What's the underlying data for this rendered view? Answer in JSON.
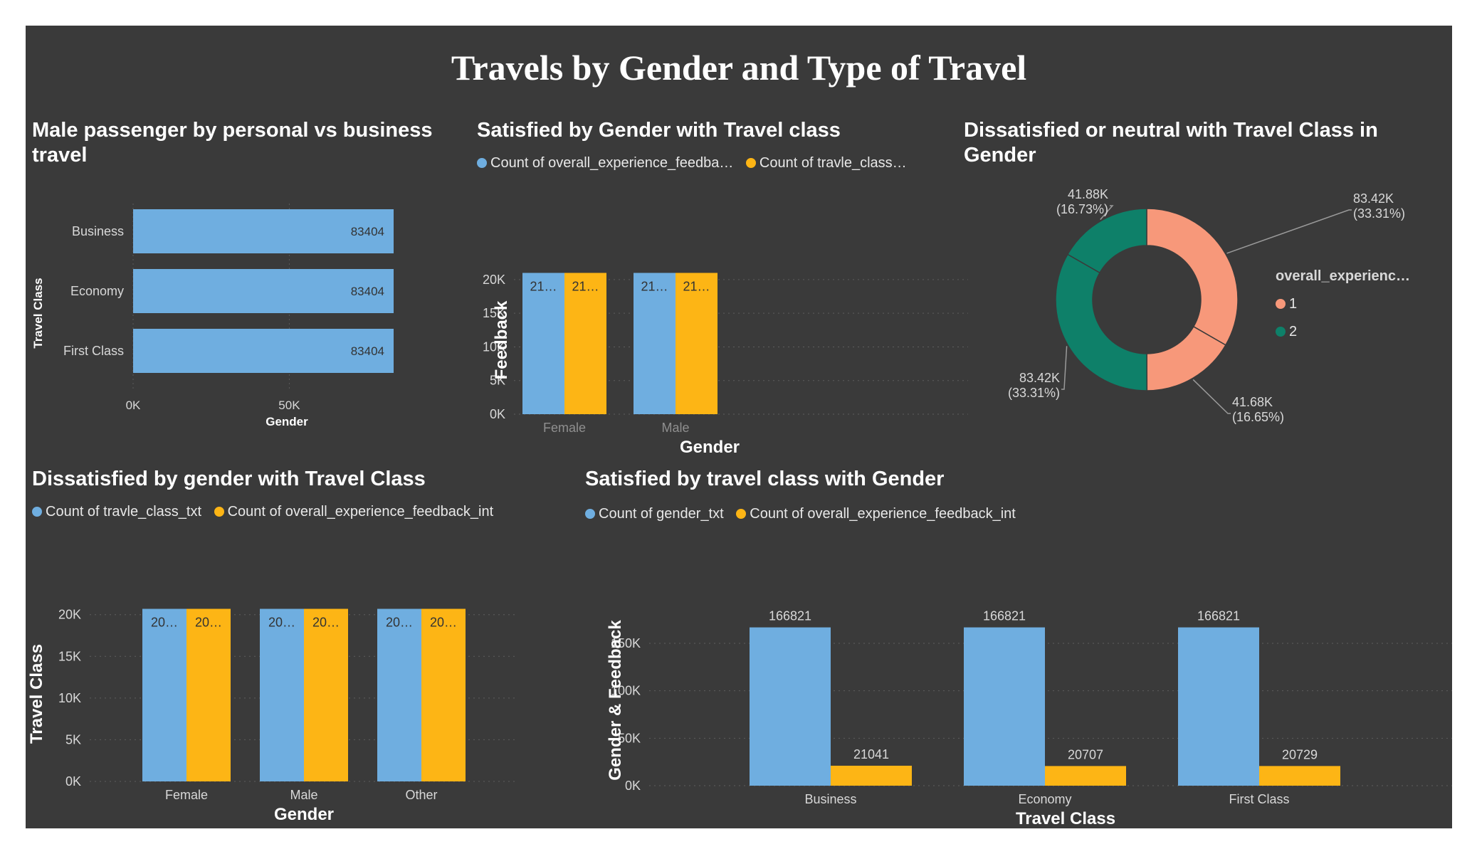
{
  "dashboard": {
    "title": "Travels by Gender and Type of Travel"
  },
  "colors": {
    "blue": "#6faee0",
    "yellow": "#fdb515",
    "salmon": "#f7987a",
    "teal": "#0e8069",
    "background": "#3a3a3a",
    "text": "#ffffff",
    "axis_text": "#d8d8d8"
  },
  "panels": {
    "p1": {
      "title": "Male passenger by personal vs business travel"
    },
    "p2": {
      "title": "Satisfied by Gender with Travel class",
      "legend": [
        "Count of overall_experience_feedba…",
        "Count of travle_class…"
      ]
    },
    "p3": {
      "title": "Dissatisfied or neutral with Travel Class in Gender",
      "legend_title": "overall_experienc…",
      "legend": [
        "1",
        "2"
      ]
    },
    "p4": {
      "title": "Dissatisfied by gender with Travel Class",
      "legend": [
        "Count of travle_class_txt",
        "Count of overall_experience_feedback_int"
      ]
    },
    "p5": {
      "title": "Satisfied by travel class with Gender",
      "legend": [
        "Count of gender_txt",
        "Count of overall_experience_feedback_int"
      ]
    }
  },
  "chart_data": [
    {
      "id": "p1",
      "type": "bar",
      "orientation": "horizontal",
      "categories": [
        "Business",
        "Economy",
        "First Class"
      ],
      "values": [
        83404,
        83404,
        83404
      ],
      "data_labels": [
        "83404",
        "83404",
        "83404"
      ],
      "xlabel": "Gender",
      "ylabel": "Travel Class",
      "xlim": [
        0,
        83404
      ],
      "xticks": [
        0,
        50000
      ],
      "xtick_labels": [
        "0K",
        "50K"
      ]
    },
    {
      "id": "p2",
      "type": "bar",
      "categories": [
        "Female",
        "Male"
      ],
      "series": [
        {
          "name": "Count of overall_experience_feedba…",
          "values": [
            21000,
            21000
          ],
          "data_labels": [
            "21…",
            "21…"
          ]
        },
        {
          "name": "Count of travle_class…",
          "values": [
            21000,
            21000
          ],
          "data_labels": [
            "21…",
            "21…"
          ]
        }
      ],
      "xlabel": "Gender",
      "ylabel": "Feedback",
      "ylim": [
        0,
        22000
      ],
      "yticks": [
        0,
        5000,
        10000,
        15000,
        20000
      ],
      "ytick_labels": [
        "0K",
        "5K",
        "10K",
        "15K",
        "20K"
      ]
    },
    {
      "id": "p3",
      "type": "pie",
      "donut": true,
      "slices": [
        {
          "label": "1",
          "value": 83420,
          "data_label": [
            "83.42K",
            "(33.31%)"
          ]
        },
        {
          "label": "1",
          "value": 41680,
          "data_label": [
            "41.68K",
            "(16.65%)"
          ]
        },
        {
          "label": "2",
          "value": 83420,
          "data_label": [
            "83.42K",
            "(33.31%)"
          ]
        },
        {
          "label": "2",
          "value": 41880,
          "data_label": [
            "41.88K",
            "(16.73%)"
          ]
        }
      ],
      "legend_placement": "right"
    },
    {
      "id": "p4",
      "type": "bar",
      "categories": [
        "Female",
        "Male",
        "Other"
      ],
      "series": [
        {
          "name": "Count of travle_class_txt",
          "values": [
            20700,
            20700,
            20700
          ],
          "data_labels": [
            "20…",
            "20…",
            "20…"
          ]
        },
        {
          "name": "Count of overall_experience_feedback_int",
          "values": [
            20700,
            20700,
            20700
          ],
          "data_labels": [
            "20…",
            "20…",
            "20…"
          ]
        }
      ],
      "xlabel": "Gender",
      "ylabel": "Travel Class",
      "ylim": [
        0,
        21000
      ],
      "yticks": [
        0,
        5000,
        10000,
        15000,
        20000
      ],
      "ytick_labels": [
        "0K",
        "5K",
        "10K",
        "15K",
        "20K"
      ]
    },
    {
      "id": "p5",
      "type": "bar",
      "categories": [
        "Business",
        "Economy",
        "First Class"
      ],
      "series": [
        {
          "name": "Count of gender_txt",
          "values": [
            166821,
            166821,
            166821
          ],
          "data_labels": [
            "166821",
            "166821",
            "166821"
          ]
        },
        {
          "name": "Count of overall_experience_feedback_int",
          "values": [
            21041,
            20707,
            20729
          ],
          "data_labels": [
            "21041",
            "20707",
            "20729"
          ]
        }
      ],
      "xlabel": "Travel Class",
      "ylabel": "Gender & Feedback",
      "ylim": [
        0,
        180000
      ],
      "yticks": [
        0,
        50000,
        100000,
        150000
      ],
      "ytick_labels": [
        "0K",
        "50K",
        "100K",
        "150K"
      ]
    }
  ]
}
